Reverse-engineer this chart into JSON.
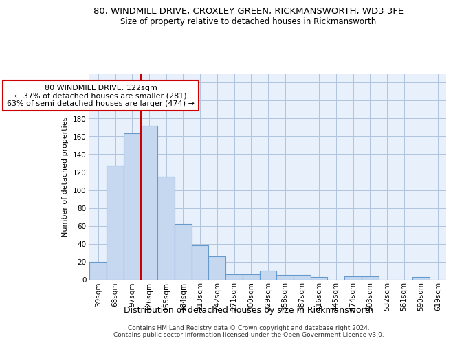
{
  "title": "80, WINDMILL DRIVE, CROXLEY GREEN, RICKMANSWORTH, WD3 3FE",
  "subtitle": "Size of property relative to detached houses in Rickmansworth",
  "xlabel": "Distribution of detached houses by size in Rickmansworth",
  "ylabel": "Number of detached properties",
  "categories": [
    "39sqm",
    "68sqm",
    "97sqm",
    "126sqm",
    "155sqm",
    "184sqm",
    "213sqm",
    "242sqm",
    "271sqm",
    "300sqm",
    "329sqm",
    "358sqm",
    "387sqm",
    "416sqm",
    "445sqm",
    "474sqm",
    "503sqm",
    "532sqm",
    "561sqm",
    "590sqm",
    "619sqm"
  ],
  "values": [
    20,
    127,
    163,
    172,
    115,
    62,
    38,
    26,
    6,
    6,
    10,
    5,
    5,
    3,
    0,
    4,
    4,
    0,
    0,
    3,
    0
  ],
  "bar_color": "#c5d8f0",
  "bar_edge_color": "#6699cc",
  "vline_color": "#cc0000",
  "vline_pos": 3.0,
  "annotation_text": "80 WINDMILL DRIVE: 122sqm\n← 37% of detached houses are smaller (281)\n63% of semi-detached houses are larger (474) →",
  "annotation_box_color": "#ffffff",
  "annotation_box_edge": "#cc0000",
  "ylim": [
    0,
    230
  ],
  "yticks": [
    0,
    20,
    40,
    60,
    80,
    100,
    120,
    140,
    160,
    180,
    200,
    220
  ],
  "footer": "Contains HM Land Registry data © Crown copyright and database right 2024.\nContains public sector information licensed under the Open Government Licence v3.0.",
  "bg_color": "#e8f0fb",
  "grid_color": "#b0c4de",
  "title_fontsize": 9.5,
  "subtitle_fontsize": 8.5,
  "xlabel_fontsize": 9,
  "ylabel_fontsize": 8,
  "tick_fontsize": 7.5,
  "footer_fontsize": 6.5,
  "ann_fontsize": 8
}
